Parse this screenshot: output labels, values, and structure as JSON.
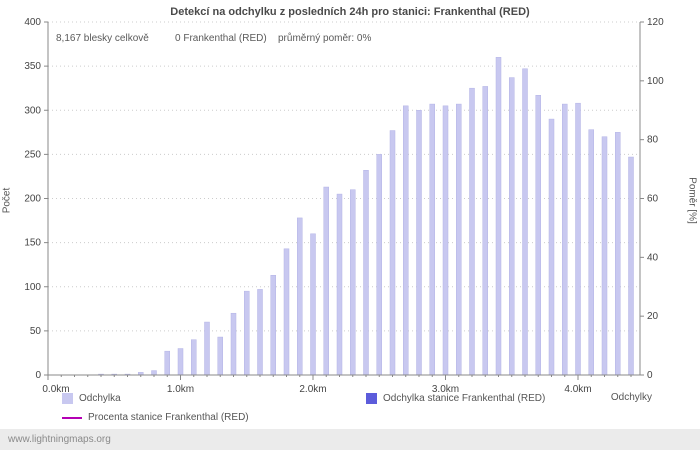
{
  "page": {
    "footer_link": "www.lightningmaps.org"
  },
  "chart": {
    "title": "Detekcí na odchylku z posledních 24h pro stanici: Frankenthal (RED)",
    "annotations": {
      "total": "8,167 blesky celkově",
      "station": "0 Frankenthal (RED)",
      "avg_ratio": "průměrný poměr: 0%"
    },
    "y_left_label": "Počet",
    "y_right_label": "Poměr [%]",
    "x_axis_label": "Odchylky",
    "legend": [
      {
        "label": "Odchylka",
        "color": "#c8c8f0",
        "type": "square"
      },
      {
        "label": "Odchylka stanice Frankenthal (RED)",
        "color": "#5c5cdb",
        "type": "square"
      },
      {
        "label": "Procenta stanice Frankenthal (RED)",
        "color": "#b400b4",
        "type": "line"
      }
    ]
  },
  "chart_data": {
    "type": "bar",
    "title": "Detekcí na odchylku z posledních 24h pro stanici: Frankenthal (RED)",
    "xlabel": "Odchylky",
    "ylabel_left": "Počet",
    "ylabel_right": "Poměr [%]",
    "x_unit": "km",
    "xlim_km": [
      0.0,
      4.5
    ],
    "ylim_left": [
      0,
      400
    ],
    "ylim_right": [
      0,
      120
    ],
    "x_ticks": [
      "0.0km",
      "1.0km",
      "2.0km",
      "3.0km",
      "4.0km"
    ],
    "y_left_ticks": [
      0,
      50,
      100,
      150,
      200,
      250,
      300,
      350,
      400
    ],
    "y_right_ticks": [
      0,
      20,
      40,
      60,
      80,
      100,
      120
    ],
    "bar_step_km": 0.1,
    "grid": "horizontal-dotted",
    "legend_position": "bottom",
    "series": [
      {
        "name": "Odchylka",
        "color": "#c8c8f0",
        "x_km": [
          0.1,
          0.2,
          0.3,
          0.4,
          0.5,
          0.6,
          0.7,
          0.8,
          0.9,
          1.0,
          1.1,
          1.2,
          1.3,
          1.4,
          1.5,
          1.6,
          1.7,
          1.8,
          1.9,
          2.0,
          2.1,
          2.2,
          2.3,
          2.4,
          2.5,
          2.6,
          2.7,
          2.8,
          2.9,
          3.0,
          3.1,
          3.2,
          3.3,
          3.4,
          3.5,
          3.6,
          3.7,
          3.8,
          3.9,
          4.0,
          4.1,
          4.2,
          4.3,
          4.4
        ],
        "values": [
          0,
          0,
          0,
          1,
          1,
          1,
          3,
          5,
          27,
          30,
          40,
          60,
          43,
          70,
          95,
          97,
          113,
          143,
          178,
          160,
          213,
          205,
          210,
          232,
          250,
          277,
          305,
          300,
          307,
          305,
          307,
          325,
          327,
          360,
          337,
          347,
          317,
          290,
          307,
          308,
          278,
          270,
          275,
          247
        ]
      },
      {
        "name": "Odchylka stanice Frankenthal (RED)",
        "color": "#5c5cdb",
        "values_constant": 0
      },
      {
        "name": "Procenta stanice Frankenthal (RED)",
        "color": "#b400b4",
        "type": "line",
        "percent_constant": 0
      }
    ]
  }
}
